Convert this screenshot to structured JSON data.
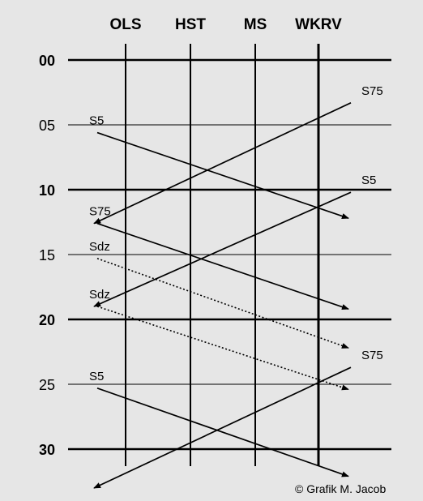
{
  "stations": [
    "OLS",
    "HST",
    "MS",
    "WKRV"
  ],
  "minute_ticks": [
    {
      "label": "00",
      "minute": 0,
      "major": true
    },
    {
      "label": "05",
      "minute": 5,
      "major": false
    },
    {
      "label": "10",
      "minute": 10,
      "major": true
    },
    {
      "label": "15",
      "minute": 15,
      "major": false
    },
    {
      "label": "20",
      "minute": 20,
      "major": true
    },
    {
      "label": "25",
      "minute": 25,
      "major": false
    },
    {
      "label": "30",
      "minute": 30,
      "major": true
    }
  ],
  "trains": [
    {
      "label": "S5",
      "direction": "outbound",
      "style": "solid",
      "start_minute": 5.6,
      "end_minute": 12.2
    },
    {
      "label": "S75",
      "direction": "inbound",
      "style": "solid",
      "start_minute": 3.3,
      "end_minute": 12.6
    },
    {
      "label": "S5",
      "direction": "inbound",
      "style": "solid",
      "start_minute": 10.2,
      "end_minute": 19.0
    },
    {
      "label": "S75",
      "direction": "outbound",
      "style": "solid",
      "start_minute": 12.6,
      "end_minute": 19.2
    },
    {
      "label": "Sdz",
      "direction": "outbound",
      "style": "dotted",
      "start_minute": 15.3,
      "end_minute": 22.2
    },
    {
      "label": "Sdz",
      "direction": "outbound",
      "style": "dotted",
      "start_minute": 19.0,
      "end_minute": 25.4
    },
    {
      "label": "S75",
      "direction": "inbound",
      "style": "solid",
      "start_minute": 23.7,
      "end_minute": 33.0
    },
    {
      "label": "S5",
      "direction": "outbound",
      "style": "solid",
      "start_minute": 25.3,
      "end_minute": 32.1
    }
  ],
  "credit": "© Grafik M. Jacob"
}
